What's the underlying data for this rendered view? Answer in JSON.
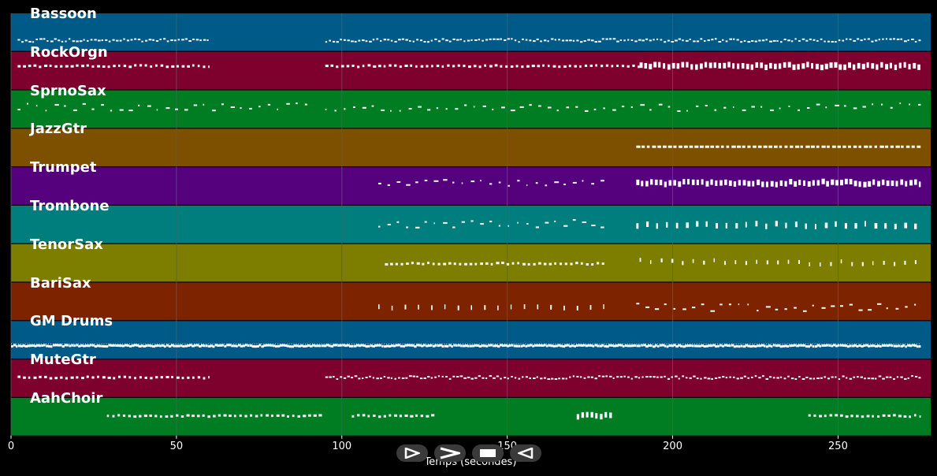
{
  "window": {
    "xlabel": "Temps (secondes)"
  },
  "axis": {
    "xmin": 0,
    "xmax": 278,
    "ticks": [
      0,
      50,
      100,
      150,
      200,
      250
    ]
  },
  "colors": {
    "grid": "#5a5a5a",
    "note": "#ffffff",
    "background": "#000000"
  },
  "tracks": [
    {
      "name": "Bassoon",
      "color": "#005a87",
      "segments": [
        [
          2,
          60,
          "dense",
          0.72
        ],
        [
          95,
          275,
          "dense",
          0.72
        ]
      ]
    },
    {
      "name": "RockOrgn",
      "color": "#7d002d",
      "segments": [
        [
          2,
          60,
          "medium",
          0.38
        ],
        [
          95,
          190,
          "medium",
          0.38
        ],
        [
          190,
          275,
          "block",
          0.38
        ]
      ]
    },
    {
      "name": "SprnoSax",
      "color": "#007d23",
      "segments": [
        [
          2,
          90,
          "sparse",
          0.45
        ],
        [
          95,
          275,
          "sparse",
          0.45
        ]
      ]
    },
    {
      "name": "JazzGtr",
      "color": "#7d5000",
      "segments": [
        [
          189,
          275,
          "dash",
          0.48
        ]
      ]
    },
    {
      "name": "Trumpet",
      "color": "#55007d",
      "segments": [
        [
          111,
          180,
          "sparse",
          0.42
        ],
        [
          189,
          275,
          "block",
          0.42
        ]
      ]
    },
    {
      "name": "Trombone",
      "color": "#007d7d",
      "segments": [
        [
          111,
          180,
          "sparse",
          0.48
        ],
        [
          189,
          275,
          "wide",
          0.52
        ]
      ]
    },
    {
      "name": "TenorSax",
      "color": "#7d7d00",
      "segments": [
        [
          113,
          180,
          "medium",
          0.52
        ],
        [
          190,
          275,
          "pair",
          0.48
        ]
      ]
    },
    {
      "name": "BariSax",
      "color": "#7d2300",
      "segments": [
        [
          111,
          180,
          "spaced",
          0.66
        ],
        [
          189,
          275,
          "sparse",
          0.66
        ]
      ]
    },
    {
      "name": "GM Drums",
      "color": "#005a87",
      "segments": [
        [
          0,
          275,
          "solid",
          0.66
        ]
      ]
    },
    {
      "name": "MuteGtr",
      "color": "#7d002d",
      "segments": [
        [
          2,
          60,
          "medium",
          0.48
        ],
        [
          95,
          275,
          "dense",
          0.48
        ]
      ]
    },
    {
      "name": "AahChoir",
      "color": "#007d23",
      "segments": [
        [
          29,
          94,
          "medium",
          0.48
        ],
        [
          103,
          128,
          "medium",
          0.48
        ],
        [
          171,
          182,
          "block",
          0.48
        ],
        [
          241,
          275,
          "medium",
          0.48
        ]
      ]
    }
  ],
  "controls": [
    {
      "name": "play-button",
      "icon": "play-icon"
    },
    {
      "name": "forward-button",
      "icon": "chevron-right-icon"
    },
    {
      "name": "stop-button",
      "icon": "stop-icon"
    },
    {
      "name": "back-button",
      "icon": "reverse-icon"
    }
  ]
}
